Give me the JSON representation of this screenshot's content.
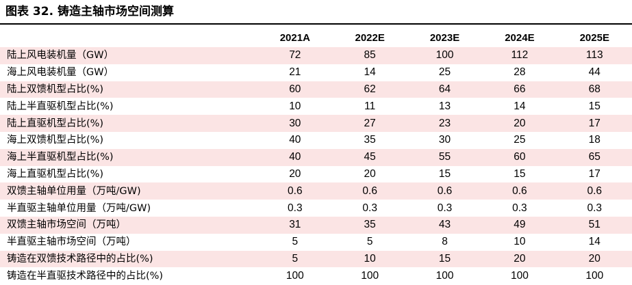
{
  "title": "图表 32. 铸造主轴市场空间测算",
  "columns": [
    "2021A",
    "2022E",
    "2023E",
    "2024E",
    "2025E"
  ],
  "rows": [
    {
      "label": "陆上风电装机量（GW）",
      "values": [
        "72",
        "85",
        "100",
        "112",
        "113"
      ],
      "shaded": true
    },
    {
      "label": "海上风电装机量（GW）",
      "values": [
        "21",
        "14",
        "25",
        "28",
        "44"
      ],
      "shaded": false
    },
    {
      "label": "陆上双馈机型占比(%)",
      "values": [
        "60",
        "62",
        "64",
        "66",
        "68"
      ],
      "shaded": true
    },
    {
      "label": "陆上半直驱机型占比(%)",
      "values": [
        "10",
        "11",
        "13",
        "14",
        "15"
      ],
      "shaded": false
    },
    {
      "label": "陆上直驱机型占比(%)",
      "values": [
        "30",
        "27",
        "23",
        "20",
        "17"
      ],
      "shaded": true
    },
    {
      "label": "海上双馈机型占比(%)",
      "values": [
        "40",
        "35",
        "30",
        "25",
        "18"
      ],
      "shaded": false
    },
    {
      "label": "海上半直驱机型占比(%)",
      "values": [
        "40",
        "45",
        "55",
        "60",
        "65"
      ],
      "shaded": true
    },
    {
      "label": "海上直驱机型占比(%)",
      "values": [
        "20",
        "20",
        "15",
        "15",
        "17"
      ],
      "shaded": false
    },
    {
      "label": "双馈主轴单位用量（万吨/GW)",
      "values": [
        "0.6",
        "0.6",
        "0.6",
        "0.6",
        "0.6"
      ],
      "shaded": true
    },
    {
      "label": "半直驱主轴单位用量（万吨/GW)",
      "values": [
        "0.3",
        "0.3",
        "0.3",
        "0.3",
        "0.3"
      ],
      "shaded": false
    },
    {
      "label": "双馈主轴市场空间（万吨）",
      "values": [
        "31",
        "35",
        "43",
        "49",
        "51"
      ],
      "shaded": true
    },
    {
      "label": "半直驱主轴市场空间（万吨）",
      "values": [
        "5",
        "5",
        "8",
        "10",
        "14"
      ],
      "shaded": false
    },
    {
      "label": "铸造在双馈技术路径中的占比(%)",
      "values": [
        "5",
        "10",
        "15",
        "20",
        "20"
      ],
      "shaded": true
    },
    {
      "label": "铸造在半直驱技术路径中的占比(%)",
      "values": [
        "100",
        "100",
        "100",
        "100",
        "100"
      ],
      "shaded": false
    }
  ]
}
